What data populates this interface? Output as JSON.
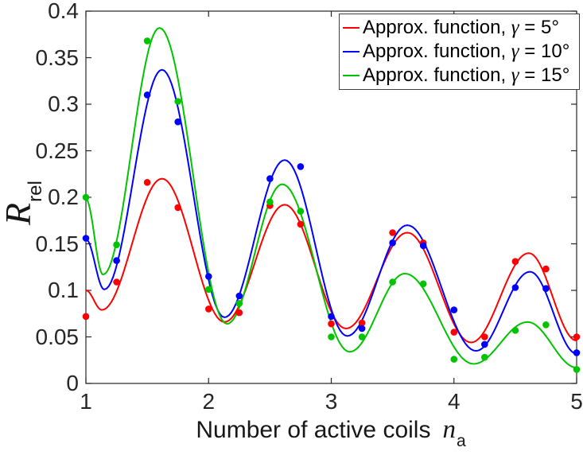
{
  "figure": {
    "background": "#ffffff",
    "axis_color": "#262626",
    "text_color": "#171717"
  },
  "chart_data": {
    "type": "line",
    "has_point_markers": true,
    "title": "",
    "xlabel": {
      "text": "Number of active coils",
      "var": "n",
      "var_sub": "a"
    },
    "ylabel": {
      "var": "R",
      "var_sub": "rel"
    },
    "xlim": [
      1,
      5
    ],
    "ylim": [
      0,
      0.4
    ],
    "x_ticks": [
      "1",
      "2",
      "3",
      "4",
      "5"
    ],
    "y_ticks": [
      "0",
      "0.05",
      "0.1",
      "0.15",
      "0.2",
      "0.25",
      "0.3",
      "0.35",
      "0.4"
    ],
    "grid": false,
    "legend": {
      "position": "top-right",
      "entries": [
        {
          "prefix": "Approx. function, ",
          "symbol": "γ",
          "suffix": " = 5°",
          "color": "#ff0000"
        },
        {
          "prefix": "Approx. function, ",
          "symbol": "γ",
          "suffix": " = 10°",
          "color": "#0000ff"
        },
        {
          "prefix": "Approx. function, ",
          "symbol": "γ",
          "suffix": " = 15°",
          "color": "#00c400"
        }
      ]
    },
    "x_points": [
      1,
      1.25,
      1.5,
      1.75,
      2,
      2.25,
      2.5,
      2.75,
      3,
      3.25,
      3.5,
      3.75,
      4,
      4.25,
      4.5,
      4.75,
      5
    ],
    "series": [
      {
        "name": "Approx. function, γ = 5°",
        "color": "#ff0000",
        "point_values": [
          0.072,
          0.109,
          0.216,
          0.189,
          0.08,
          0.076,
          0.191,
          0.171,
          0.064,
          0.065,
          0.162,
          0.151,
          0.055,
          0.05,
          0.131,
          0.123,
          0.05
        ],
        "curve_anchors": [
          [
            1.0,
            0.1
          ],
          [
            1.13,
            0.079
          ],
          [
            1.62,
            0.22
          ],
          [
            2.13,
            0.066
          ],
          [
            2.62,
            0.192
          ],
          [
            3.12,
            0.059
          ],
          [
            3.62,
            0.162
          ],
          [
            4.14,
            0.044
          ],
          [
            4.61,
            0.14
          ],
          [
            5.0,
            0.046
          ]
        ]
      },
      {
        "name": "Approx. function, γ = 10°",
        "color": "#0000ff",
        "point_values": [
          0.156,
          0.132,
          0.31,
          0.281,
          0.115,
          0.094,
          0.22,
          0.233,
          0.072,
          0.059,
          0.151,
          0.148,
          0.079,
          0.042,
          0.103,
          0.102,
          0.033
        ],
        "curve_anchors": [
          [
            1.0,
            0.155
          ],
          [
            1.15,
            0.101
          ],
          [
            1.62,
            0.337
          ],
          [
            2.13,
            0.071
          ],
          [
            2.62,
            0.24
          ],
          [
            3.13,
            0.051
          ],
          [
            3.62,
            0.17
          ],
          [
            4.18,
            0.035
          ],
          [
            4.62,
            0.12
          ],
          [
            5.0,
            0.032
          ]
        ]
      },
      {
        "name": "Approx. function, γ = 15°",
        "color": "#00c400",
        "point_values": [
          0.2,
          0.149,
          0.368,
          0.303,
          0.101,
          0.086,
          0.195,
          0.185,
          0.05,
          0.05,
          0.109,
          0.107,
          0.026,
          0.028,
          0.057,
          0.063,
          0.015
        ],
        "curve_anchors": [
          [
            1.0,
            0.198
          ],
          [
            1.14,
            0.117
          ],
          [
            1.6,
            0.382
          ],
          [
            2.15,
            0.064
          ],
          [
            2.6,
            0.214
          ],
          [
            3.15,
            0.034
          ],
          [
            3.6,
            0.118
          ],
          [
            4.16,
            0.021
          ],
          [
            4.6,
            0.066
          ],
          [
            5.0,
            0.017
          ]
        ]
      }
    ]
  }
}
